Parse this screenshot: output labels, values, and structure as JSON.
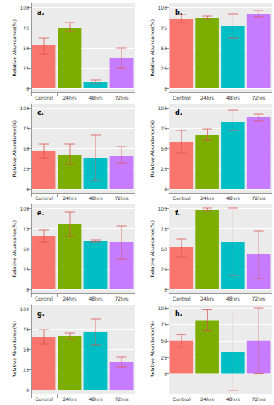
{
  "chart_data": [
    {
      "type": "bar",
      "title": "a.",
      "y_label": "Relative Abundance(%)",
      "categories": [
        "Control",
        "24hrs",
        "48hrs",
        "72hrs"
      ],
      "values": [
        53,
        75,
        8,
        37
      ],
      "error_low": [
        42,
        70,
        6,
        25
      ],
      "error_high": [
        62,
        81,
        10,
        50
      ],
      "colors": [
        "#F8766D",
        "#7CAE00",
        "#00BFC4",
        "#C77CFF"
      ],
      "ylim": [
        -5,
        105
      ],
      "yticks": [
        0,
        25,
        50,
        75,
        100
      ],
      "grid": true
    },
    {
      "type": "bar",
      "title": "b.",
      "y_label": "Relative Abundance(%)",
      "categories": [
        "Control",
        "24hrs",
        "48hrs",
        "72hrs"
      ],
      "values": [
        86,
        87,
        77,
        92
      ],
      "error_low": [
        81,
        85,
        62,
        88
      ],
      "error_high": [
        91,
        89,
        92,
        96
      ],
      "colors": [
        "#F8766D",
        "#7CAE00",
        "#00BFC4",
        "#C77CFF"
      ],
      "ylim": [
        -5,
        105
      ],
      "yticks": [
        0,
        25,
        50,
        75,
        100
      ],
      "grid": true
    },
    {
      "type": "bar",
      "title": "c.",
      "y_label": "Relative Abundance(%)",
      "categories": [
        "Control",
        "24hrs",
        "48hrs",
        "72hrs"
      ],
      "values": [
        46,
        42,
        38,
        40
      ],
      "error_low": [
        38,
        30,
        10,
        32
      ],
      "error_high": [
        55,
        55,
        66,
        52
      ],
      "colors": [
        "#F8766D",
        "#7CAE00",
        "#00BFC4",
        "#C77CFF"
      ],
      "ylim": [
        -5,
        105
      ],
      "yticks": [
        0,
        25,
        50,
        75,
        100
      ],
      "grid": true
    },
    {
      "type": "bar",
      "title": "d.",
      "y_label": "Relative Abundance(%)",
      "categories": [
        "Control",
        "24hrs",
        "48hrs",
        "72hrs"
      ],
      "values": [
        58,
        66,
        83,
        88
      ],
      "error_low": [
        44,
        60,
        72,
        84
      ],
      "error_high": [
        72,
        74,
        97,
        92
      ],
      "colors": [
        "#F8766D",
        "#7CAE00",
        "#00BFC4",
        "#C77CFF"
      ],
      "ylim": [
        -5,
        105
      ],
      "yticks": [
        0,
        25,
        50,
        75,
        100
      ],
      "grid": true
    },
    {
      "type": "bar",
      "title": "e.",
      "y_label": "Relative Abundance(%)",
      "categories": [
        "Control",
        "24hrs",
        "48hrs",
        "72hrs"
      ],
      "values": [
        66,
        80,
        60,
        58
      ],
      "error_low": [
        58,
        65,
        58,
        37
      ],
      "error_high": [
        73,
        95,
        61,
        78
      ],
      "colors": [
        "#F8766D",
        "#7CAE00",
        "#00BFC4",
        "#C77CFF"
      ],
      "ylim": [
        -5,
        105
      ],
      "yticks": [
        0,
        25,
        50,
        75,
        100
      ],
      "grid": true
    },
    {
      "type": "bar",
      "title": "f.",
      "y_label": "Relative Abundance(%)",
      "categories": [
        "Control",
        "24hrs",
        "48hrs",
        "72hrs"
      ],
      "values": [
        52,
        98,
        58,
        43
      ],
      "error_low": [
        40,
        96,
        17,
        13
      ],
      "error_high": [
        62,
        100,
        100,
        72
      ],
      "colors": [
        "#F8766D",
        "#7CAE00",
        "#00BFC4",
        "#C77CFF"
      ],
      "ylim": [
        -5,
        105
      ],
      "yticks": [
        0,
        25,
        50,
        75,
        100
      ],
      "grid": true
    },
    {
      "type": "bar",
      "title": "g.",
      "y_label": "Relative Abundance(%)",
      "categories": [
        "Control",
        "24hrs",
        "48hrs",
        "72hrs"
      ],
      "values": [
        65,
        66,
        71,
        34
      ],
      "error_low": [
        56,
        62,
        55,
        28
      ],
      "error_high": [
        74,
        70,
        87,
        40
      ],
      "colors": [
        "#F8766D",
        "#7CAE00",
        "#00BFC4",
        "#C77CFF"
      ],
      "ylim": [
        -5,
        105
      ],
      "yticks": [
        0,
        25,
        50,
        75,
        100
      ],
      "grid": true
    },
    {
      "type": "bar",
      "title": "h.",
      "y_label": "Relative Abundance(%)",
      "categories": [
        "Control",
        "24hrs",
        "48hrs",
        "72hrs"
      ],
      "values": [
        50,
        81,
        33,
        50
      ],
      "error_low": [
        40,
        65,
        -25,
        0
      ],
      "error_high": [
        60,
        97,
        92,
        100
      ],
      "colors": [
        "#F8766D",
        "#7CAE00",
        "#00BFC4",
        "#C77CFF"
      ],
      "ylim": [
        -30,
        105
      ],
      "yticks": [
        0,
        25,
        50,
        75,
        100
      ],
      "grid": true
    }
  ]
}
